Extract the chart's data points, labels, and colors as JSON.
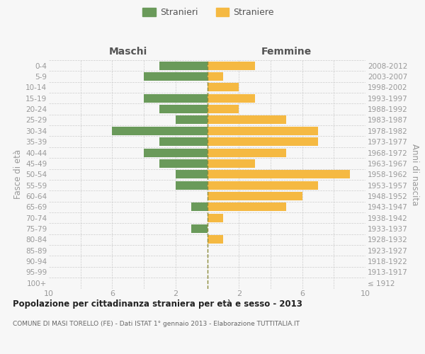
{
  "age_groups": [
    "0-4",
    "5-9",
    "10-14",
    "15-19",
    "20-24",
    "25-29",
    "30-34",
    "35-39",
    "40-44",
    "45-49",
    "50-54",
    "55-59",
    "60-64",
    "65-69",
    "70-74",
    "75-79",
    "80-84",
    "85-89",
    "90-94",
    "95-99",
    "100+"
  ],
  "birth_years": [
    "2008-2012",
    "2003-2007",
    "1998-2002",
    "1993-1997",
    "1988-1992",
    "1983-1987",
    "1978-1982",
    "1973-1977",
    "1968-1972",
    "1963-1967",
    "1958-1962",
    "1953-1957",
    "1948-1952",
    "1943-1947",
    "1938-1942",
    "1933-1937",
    "1928-1932",
    "1923-1927",
    "1918-1922",
    "1913-1917",
    "≤ 1912"
  ],
  "maschi": [
    3,
    4,
    0,
    4,
    3,
    2,
    6,
    3,
    4,
    3,
    2,
    2,
    0,
    1,
    0,
    1,
    0,
    0,
    0,
    0,
    0
  ],
  "femmine": [
    3,
    1,
    2,
    3,
    2,
    5,
    7,
    7,
    5,
    3,
    9,
    7,
    6,
    5,
    1,
    0,
    1,
    0,
    0,
    0,
    0
  ],
  "maschi_color": "#6a9a5a",
  "femmine_color": "#f5b942",
  "legend_maschi": "Stranieri",
  "legend_femmine": "Straniere",
  "header_left": "Maschi",
  "header_right": "Femmine",
  "ylabel_left": "Fasce di età",
  "ylabel_right": "Anni di nascita",
  "title": "Popolazione per cittadinanza straniera per età e sesso - 2013",
  "subtitle": "COMUNE DI MASI TORELLO (FE) - Dati ISTAT 1° gennaio 2013 - Elaborazione TUTTITALIA.IT",
  "xlim": 10,
  "bar_height": 0.78,
  "bg_color": "#f7f7f7",
  "grid_color": "#cccccc",
  "center_line_color": "#8b8b3a",
  "label_color": "#999999",
  "header_color": "#555555",
  "title_color": "#222222",
  "subtitle_color": "#666666"
}
